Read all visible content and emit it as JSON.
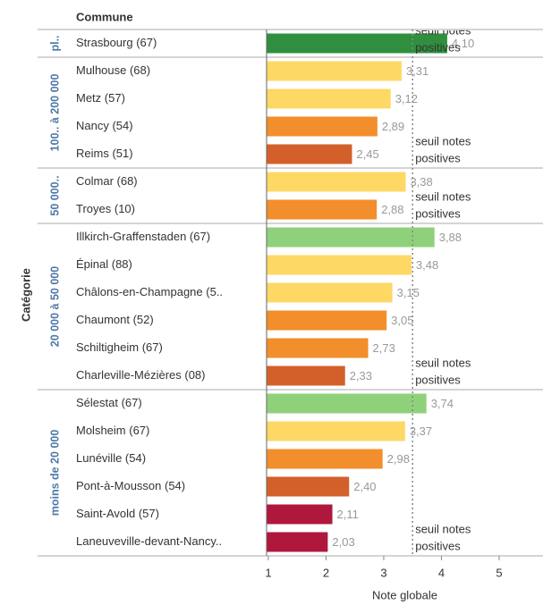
{
  "chart_data": {
    "type": "bar",
    "orientation": "horizontal",
    "row_header": "Commune",
    "group_header": "Catégorie",
    "x_label": "Note globale",
    "groups": [
      {
        "name": "pl..",
        "size": 1
      },
      {
        "name": "100.. à 200 000",
        "size": 4
      },
      {
        "name": "50 000..",
        "size": 2
      },
      {
        "name": "20 000 à 50 000",
        "size": 6
      },
      {
        "name": "moins de 20 000",
        "size": 6
      }
    ],
    "categories": [
      "Strasbourg (67)",
      "Mulhouse (68)",
      "Metz (57)",
      "Nancy (54)",
      "Reims (51)",
      "Colmar (68)",
      "Troyes (10)",
      "Illkirch-Graffenstaden (67)",
      "Épinal (88)",
      "Châlons-en-Champagne (5..",
      "Chaumont (52)",
      "Schiltigheim (67)",
      "Charleville-Mézières (08)",
      "Sélestat (67)",
      "Molsheim (67)",
      "Lunéville (54)",
      "Pont-à-Mousson (54)",
      "Saint-Avold (57)",
      "Laneuveville-devant-Nancy.."
    ],
    "values": [
      4.1,
      3.31,
      3.12,
      2.89,
      2.45,
      3.38,
      2.88,
      3.88,
      3.48,
      3.15,
      3.05,
      2.73,
      2.33,
      3.74,
      3.37,
      2.98,
      2.4,
      2.11,
      2.03
    ],
    "value_labels": [
      "4,10",
      "3,31",
      "3,12",
      "2,89",
      "2,45",
      "3,38",
      "2,88",
      "3,88",
      "3,48",
      "3,15",
      "3,05",
      "2,73",
      "2,33",
      "3,74",
      "3,37",
      "2,98",
      "2,40",
      "2,11",
      "2,03"
    ],
    "colors": [
      "#2f8f3e",
      "#fdd865",
      "#fdd865",
      "#f28e2b",
      "#d3602a",
      "#fdd865",
      "#f28e2b",
      "#8fd17a",
      "#fdd865",
      "#fdd865",
      "#f28e2b",
      "#f28e2b",
      "#d3602a",
      "#8fd17a",
      "#fdd865",
      "#f28e2b",
      "#d3602a",
      "#b0173d",
      "#b0173d"
    ],
    "reference_line": {
      "value": 3.5,
      "label_lines": [
        "seuil notes",
        "positives"
      ]
    },
    "xlim": [
      0.97,
      5.76
    ],
    "xticks": [
      1,
      2,
      3,
      4,
      5
    ]
  }
}
